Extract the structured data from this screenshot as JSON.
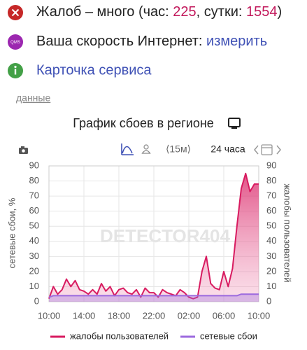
{
  "header": {
    "complaints": {
      "text_before": "Жалоб – много (час: ",
      "hour": 225,
      "text_mid": ", сутки: ",
      "day": 1554,
      "text_after": ")"
    },
    "speed": {
      "icon": "QMS",
      "text": "Ваша скорость Интернет: ",
      "link": "измерить"
    },
    "service": {
      "link": "Карточка сервиса"
    },
    "data_link": "данные"
  },
  "chart_data": {
    "type": "line",
    "title": "График сбоев в регионе",
    "toolbar": {
      "interval": "⟨15м⟩",
      "range": "24 часа"
    },
    "watermark": "DETECTOR404",
    "ylabel": "сетевые сбои, %",
    "y2label": "жалобы пользователей",
    "x": [
      0,
      0.5,
      1,
      1.5,
      2,
      2.5,
      3,
      3.5,
      4,
      4.5,
      5,
      5.5,
      6,
      6.5,
      7,
      7.5,
      8,
      8.5,
      9,
      9.5,
      10,
      10.5,
      11,
      11.5,
      12,
      12.5,
      13,
      13.5,
      14,
      14.5,
      15,
      15.5,
      16,
      16.5,
      17,
      17.5,
      18,
      18.5,
      19,
      19.5,
      20,
      20.5,
      21,
      21.5,
      22,
      22.5,
      23,
      23.5,
      24
    ],
    "xlim": [
      0,
      24
    ],
    "xticks": [
      {
        "value": 0,
        "label": "10:00"
      },
      {
        "value": 4,
        "label": "14:00"
      },
      {
        "value": 8,
        "label": "18:00"
      },
      {
        "value": 12,
        "label": "22:00"
      },
      {
        "value": 16,
        "label": "02:00"
      },
      {
        "value": 20,
        "label": "06:00"
      },
      {
        "value": 24,
        "label": "10:00"
      }
    ],
    "ylim": [
      0,
      90
    ],
    "yticks": [
      0,
      10,
      20,
      30,
      40,
      50,
      60,
      70,
      80,
      90
    ],
    "y2lim": [
      0,
      90
    ],
    "y2ticks": [
      0,
      10,
      20,
      30,
      40,
      50,
      60,
      70,
      80,
      90
    ],
    "grid": true,
    "legend": "bottom",
    "series": [
      {
        "name": "жалобы пользователей",
        "color": "#d81b60",
        "axis": "y2",
        "values": [
          2,
          10,
          5,
          8,
          15,
          10,
          14,
          8,
          7,
          5,
          8,
          5,
          12,
          7,
          10,
          4,
          8,
          9,
          6,
          5,
          8,
          3,
          9,
          6,
          6,
          3,
          8,
          6,
          5,
          4,
          8,
          6,
          3,
          2,
          3,
          20,
          30,
          12,
          9,
          8,
          20,
          10,
          22,
          50,
          75,
          85,
          73,
          78,
          78
        ]
      },
      {
        "name": "сетевые сбои",
        "color": "#9c6ade",
        "values": [
          3,
          4,
          4,
          4,
          4,
          4,
          4,
          4,
          4,
          4,
          4,
          4,
          4,
          4,
          4,
          4,
          4,
          4,
          4,
          4,
          4,
          4,
          4,
          4,
          4,
          4,
          4,
          4,
          4,
          4,
          4,
          4,
          4,
          4,
          4,
          4,
          4,
          4,
          4,
          4,
          4,
          4,
          4,
          4,
          5,
          5,
          5,
          5,
          5
        ]
      }
    ]
  }
}
